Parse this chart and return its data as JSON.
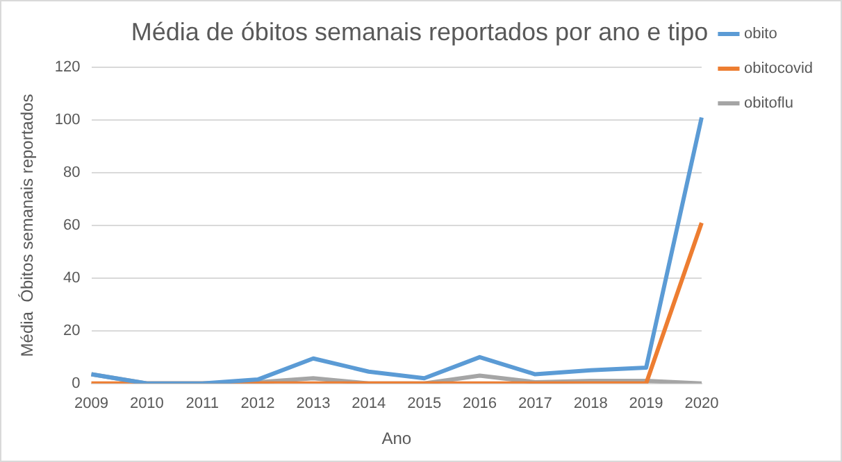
{
  "chart_data": {
    "type": "line",
    "title": "Média de óbitos semanais reportados por ano e tipo",
    "xlabel": "Ano",
    "ylabel": "Média  Óbitos semanais reportados",
    "categories": [
      "2009",
      "2010",
      "2011",
      "2012",
      "2013",
      "2014",
      "2015",
      "2016",
      "2017",
      "2018",
      "2019",
      "2020"
    ],
    "series": [
      {
        "name": "obito",
        "color": "#5b9bd5",
        "values": [
          3.5,
          0,
          0,
          1.5,
          9.5,
          4.5,
          2,
          10,
          3.5,
          5,
          6,
          101
        ]
      },
      {
        "name": "obitocovid",
        "color": "#ed7d31",
        "values": [
          0,
          0,
          0,
          0,
          0,
          0,
          0,
          0,
          0,
          0,
          0,
          61
        ]
      },
      {
        "name": "obitoflu",
        "color": "#a5a5a5",
        "values": [
          3.5,
          0,
          0,
          0.5,
          2,
          0,
          0,
          3,
          0.5,
          1,
          1,
          0
        ]
      }
    ],
    "ylim": [
      0,
      120
    ],
    "yticks": [
      0,
      20,
      40,
      60,
      80,
      100,
      120
    ],
    "grid": "y",
    "legend": "right",
    "marker": "none",
    "line_style": "solid"
  }
}
